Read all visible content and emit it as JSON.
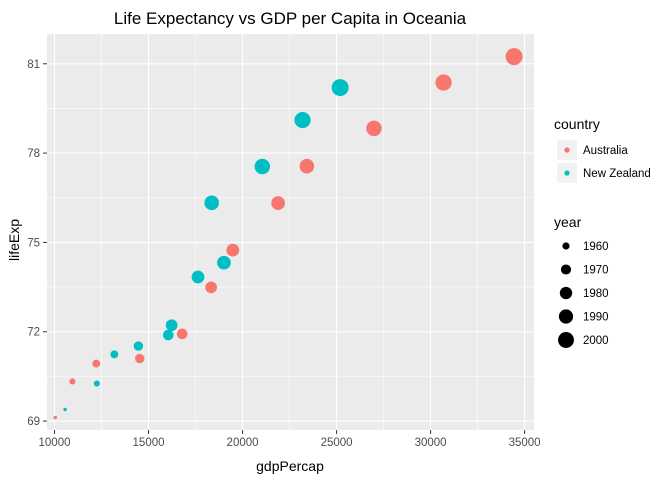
{
  "chart_data": {
    "type": "scatter",
    "title": "Life Expectancy vs GDP per Capita in Oceania",
    "xlabel": "gdpPercap",
    "ylabel": "lifeExp",
    "xlim": [
      9600,
      35500
    ],
    "ylim": [
      68.7,
      82.0
    ],
    "x_ticks": [
      10000,
      15000,
      20000,
      25000,
      30000,
      35000
    ],
    "x_tick_labels": [
      "10000",
      "15000",
      "20000",
      "25000",
      "30000",
      "35000"
    ],
    "y_ticks": [
      69,
      72,
      75,
      78,
      81
    ],
    "y_tick_labels": [
      "69",
      "72",
      "75",
      "78",
      "81"
    ],
    "grid": true,
    "legend_placement": "right",
    "color_legend": {
      "title": "country",
      "entries": [
        {
          "label": "Australia",
          "color": "#F8766D"
        },
        {
          "label": "New Zealand",
          "color": "#00BFC4"
        }
      ]
    },
    "size_legend": {
      "title": "year",
      "entries": [
        {
          "label": "1960",
          "value": 1960
        },
        {
          "label": "1970",
          "value": 1970
        },
        {
          "label": "1980",
          "value": 1980
        },
        {
          "label": "1990",
          "value": 1990
        },
        {
          "label": "2000",
          "value": 2000
        }
      ],
      "size_domain": [
        1952,
        2007
      ]
    },
    "series": [
      {
        "name": "Australia",
        "color": "#F8766D",
        "points": [
          {
            "x": 10040,
            "y": 69.12,
            "year": 1952
          },
          {
            "x": 10950,
            "y": 70.33,
            "year": 1957
          },
          {
            "x": 12220,
            "y": 70.93,
            "year": 1962
          },
          {
            "x": 14530,
            "y": 71.1,
            "year": 1967
          },
          {
            "x": 16790,
            "y": 71.93,
            "year": 1972
          },
          {
            "x": 18330,
            "y": 73.49,
            "year": 1977
          },
          {
            "x": 19480,
            "y": 74.74,
            "year": 1982
          },
          {
            "x": 21890,
            "y": 76.32,
            "year": 1987
          },
          {
            "x": 23420,
            "y": 77.56,
            "year": 1992
          },
          {
            "x": 26990,
            "y": 78.83,
            "year": 1997
          },
          {
            "x": 30690,
            "y": 80.37,
            "year": 2002
          },
          {
            "x": 34440,
            "y": 81.24,
            "year": 2007
          }
        ]
      },
      {
        "name": "New Zealand",
        "color": "#00BFC4",
        "points": [
          {
            "x": 10560,
            "y": 69.39,
            "year": 1952
          },
          {
            "x": 12250,
            "y": 70.26,
            "year": 1957
          },
          {
            "x": 13180,
            "y": 71.24,
            "year": 1962
          },
          {
            "x": 14460,
            "y": 71.52,
            "year": 1967
          },
          {
            "x": 16050,
            "y": 71.89,
            "year": 1972
          },
          {
            "x": 16230,
            "y": 72.22,
            "year": 1977
          },
          {
            "x": 17630,
            "y": 73.84,
            "year": 1982
          },
          {
            "x": 19010,
            "y": 74.32,
            "year": 1987
          },
          {
            "x": 18360,
            "y": 76.33,
            "year": 1992
          },
          {
            "x": 21050,
            "y": 77.55,
            "year": 1997
          },
          {
            "x": 23190,
            "y": 79.11,
            "year": 2002
          },
          {
            "x": 25190,
            "y": 80.2,
            "year": 2007
          }
        ]
      }
    ]
  }
}
